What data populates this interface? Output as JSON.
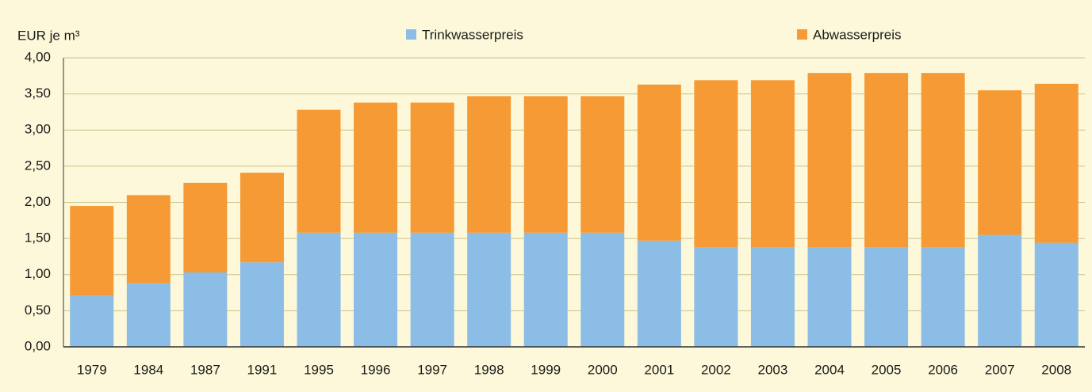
{
  "chart_data": {
    "type": "stacked_bar",
    "y_axis_label": "EUR je m³",
    "categories": [
      "1979",
      "1984",
      "1987",
      "1991",
      "1995",
      "1996",
      "1997",
      "1998",
      "1999",
      "2000",
      "2001",
      "2002",
      "2003",
      "2004",
      "2005",
      "2006",
      "2007",
      "2008"
    ],
    "series": [
      {
        "name": "Trinkwasserpreis",
        "color": "#8bbde6",
        "values": [
          0.71,
          0.88,
          1.03,
          1.17,
          1.58,
          1.58,
          1.58,
          1.58,
          1.58,
          1.58,
          1.47,
          1.38,
          1.38,
          1.38,
          1.38,
          1.38,
          1.55,
          1.44
        ]
      },
      {
        "name": "Abwasserpreis",
        "color": "#f59a35",
        "values": [
          1.24,
          1.22,
          1.24,
          1.24,
          1.7,
          1.8,
          1.8,
          1.89,
          1.89,
          1.89,
          2.16,
          2.31,
          2.31,
          2.41,
          2.41,
          2.41,
          2.0,
          2.2
        ]
      }
    ],
    "ylim": [
      0,
      4
    ],
    "yticks": [
      {
        "value": 0,
        "label": "0,00"
      },
      {
        "value": 0.5,
        "label": "0,50"
      },
      {
        "value": 1,
        "label": "1,00"
      },
      {
        "value": 1.5,
        "label": "1,50"
      },
      {
        "value": 2,
        "label": "2,00"
      },
      {
        "value": 2.5,
        "label": "2,50"
      },
      {
        "value": 3,
        "label": "3,00"
      },
      {
        "value": 3.5,
        "label": "3,50"
      },
      {
        "value": 4,
        "label": "4,00"
      }
    ],
    "grid": true
  }
}
